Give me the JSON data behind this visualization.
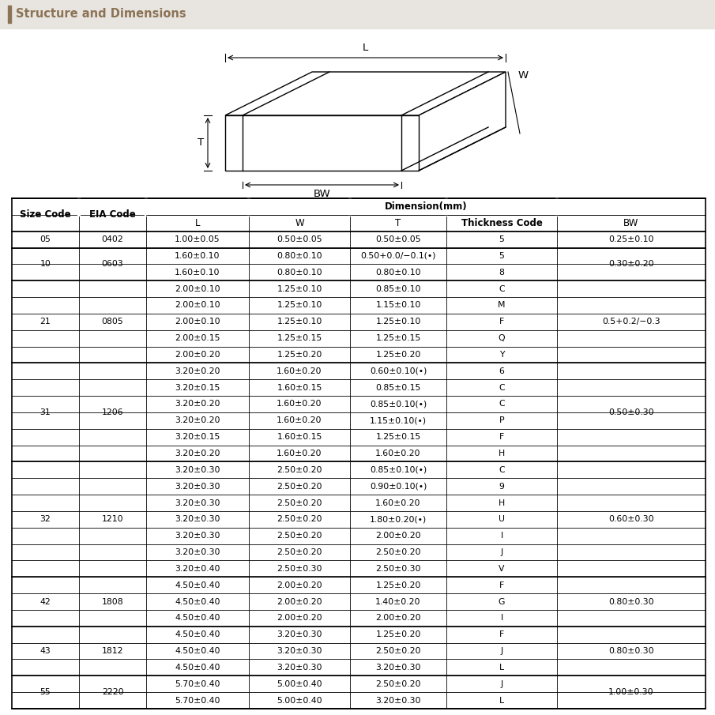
{
  "title": "Structure and Dimensions",
  "title_color": "#8B7355",
  "header_bg": "#E8E4DF",
  "dim_header": "Dimension(mm)",
  "rows": [
    [
      "05",
      "0402",
      "1.00±0.05",
      "0.50±0.05",
      "0.50±0.05",
      "5",
      "0.25±0.10"
    ],
    [
      "10",
      "0603",
      "1.60±0.10",
      "0.80±0.10",
      "0.50+0.0/−0.1(•)",
      "5",
      "0.30±0.20"
    ],
    [
      "",
      "",
      "1.60±0.10",
      "0.80±0.10",
      "0.80±0.10",
      "8",
      ""
    ],
    [
      "21",
      "0805",
      "2.00±0.10",
      "1.25±0.10",
      "0.85±0.10",
      "C",
      "0.5+0.2/−0.3"
    ],
    [
      "",
      "",
      "2.00±0.10",
      "1.25±0.10",
      "1.15±0.10",
      "M",
      ""
    ],
    [
      "",
      "",
      "2.00±0.10",
      "1.25±0.10",
      "1.25±0.10",
      "F",
      ""
    ],
    [
      "",
      "",
      "2.00±0.15",
      "1.25±0.15",
      "1.25±0.15",
      "Q",
      ""
    ],
    [
      "",
      "",
      "2.00±0.20",
      "1.25±0.20",
      "1.25±0.20",
      "Y",
      ""
    ],
    [
      "31",
      "1206",
      "3.20±0.20",
      "1.60±0.20",
      "0.60±0.10(•)",
      "6",
      "0.50±0.30"
    ],
    [
      "",
      "",
      "3.20±0.15",
      "1.60±0.15",
      "0.85±0.15",
      "C",
      ""
    ],
    [
      "",
      "",
      "3.20±0.20",
      "1.60±0.20",
      "0.85±0.10(•)",
      "C",
      ""
    ],
    [
      "",
      "",
      "3.20±0.20",
      "1.60±0.20",
      "1.15±0.10(•)",
      "P",
      ""
    ],
    [
      "",
      "",
      "3.20±0.15",
      "1.60±0.15",
      "1.25±0.15",
      "F",
      ""
    ],
    [
      "",
      "",
      "3.20±0.20",
      "1.60±0.20",
      "1.60±0.20",
      "H",
      ""
    ],
    [
      "32",
      "1210",
      "3.20±0.30",
      "2.50±0.20",
      "0.85±0.10(•)",
      "C",
      "0.60±0.30"
    ],
    [
      "",
      "",
      "3.20±0.30",
      "2.50±0.20",
      "0.90±0.10(•)",
      "9",
      ""
    ],
    [
      "",
      "",
      "3.20±0.30",
      "2.50±0.20",
      "1.60±0.20",
      "H",
      ""
    ],
    [
      "",
      "",
      "3.20±0.30",
      "2.50±0.20",
      "1.80±0.20(•)",
      "U",
      ""
    ],
    [
      "",
      "",
      "3.20±0.30",
      "2.50±0.20",
      "2.00±0.20",
      "I",
      ""
    ],
    [
      "",
      "",
      "3.20±0.30",
      "2.50±0.20",
      "2.50±0.20",
      "J",
      ""
    ],
    [
      "",
      "",
      "3.20±0.40",
      "2.50±0.30",
      "2.50±0.30",
      "V",
      ""
    ],
    [
      "42",
      "1808",
      "4.50±0.40",
      "2.00±0.20",
      "1.25±0.20",
      "F",
      "0.80±0.30"
    ],
    [
      "",
      "",
      "4.50±0.40",
      "2.00±0.20",
      "1.40±0.20",
      "G",
      ""
    ],
    [
      "",
      "",
      "4.50±0.40",
      "2.00±0.20",
      "2.00±0.20",
      "I",
      ""
    ],
    [
      "43",
      "1812",
      "4.50±0.40",
      "3.20±0.30",
      "1.25±0.20",
      "F",
      "0.80±0.30"
    ],
    [
      "",
      "",
      "4.50±0.40",
      "3.20±0.30",
      "2.50±0.20",
      "J",
      ""
    ],
    [
      "",
      "",
      "4.50±0.40",
      "3.20±0.30",
      "3.20±0.30",
      "L",
      ""
    ],
    [
      "55",
      "2220",
      "5.70±0.40",
      "5.00±0.40",
      "2.50±0.20",
      "J",
      "1.00±0.30"
    ],
    [
      "",
      "",
      "5.70±0.40",
      "5.00±0.40",
      "3.20±0.30",
      "L",
      ""
    ]
  ],
  "groups": [
    {
      "size": "05",
      "eia": "0402",
      "start": 0,
      "end": 0,
      "bw": "0.25±0.10"
    },
    {
      "size": "10",
      "eia": "0603",
      "start": 1,
      "end": 2,
      "bw": "0.30±0.20"
    },
    {
      "size": "21",
      "eia": "0805",
      "start": 3,
      "end": 7,
      "bw": "0.5+0.2/−0.3"
    },
    {
      "size": "31",
      "eia": "1206",
      "start": 8,
      "end": 13,
      "bw": "0.50±0.30"
    },
    {
      "size": "32",
      "eia": "1210",
      "start": 14,
      "end": 20,
      "bw": "0.60±0.30"
    },
    {
      "size": "42",
      "eia": "1808",
      "start": 21,
      "end": 23,
      "bw": "0.80±0.30"
    },
    {
      "size": "43",
      "eia": "1812",
      "start": 24,
      "end": 26,
      "bw": "0.80±0.30"
    },
    {
      "size": "55",
      "eia": "2220",
      "start": 27,
      "end": 28,
      "bw": "1.00±0.30"
    }
  ]
}
